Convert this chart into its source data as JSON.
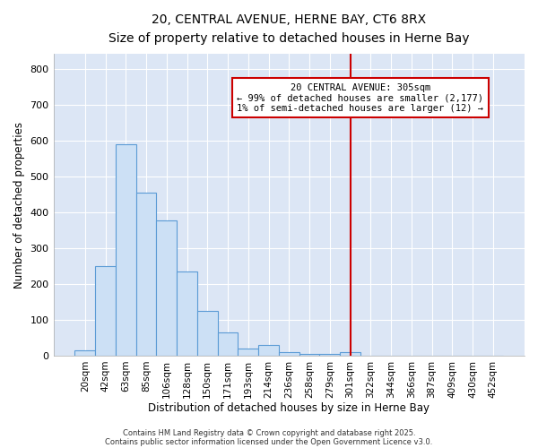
{
  "title1": "20, CENTRAL AVENUE, HERNE BAY, CT6 8RX",
  "title2": "Size of property relative to detached houses in Herne Bay",
  "xlabel": "Distribution of detached houses by size in Herne Bay",
  "ylabel": "Number of detached properties",
  "categories": [
    "20sqm",
    "42sqm",
    "63sqm",
    "85sqm",
    "106sqm",
    "128sqm",
    "150sqm",
    "171sqm",
    "193sqm",
    "214sqm",
    "236sqm",
    "258sqm",
    "279sqm",
    "301sqm",
    "322sqm",
    "344sqm",
    "366sqm",
    "387sqm",
    "409sqm",
    "430sqm",
    "452sqm"
  ],
  "values": [
    15,
    250,
    590,
    455,
    378,
    235,
    125,
    65,
    20,
    30,
    10,
    5,
    5,
    10,
    0,
    0,
    0,
    0,
    0,
    0,
    0
  ],
  "bar_color": "#cce0f5",
  "bar_edge_color": "#5b9bd5",
  "vline_index": 13,
  "vline_color": "#cc0000",
  "annotation_title": "20 CENTRAL AVENUE: 305sqm",
  "annotation_line1": "← 99% of detached houses are smaller (2,177)",
  "annotation_line2": "1% of semi-detached houses are larger (12) →",
  "annotation_box_facecolor": "#ffffff",
  "annotation_box_edgecolor": "#cc0000",
  "ylim": [
    0,
    840
  ],
  "yticks": [
    0,
    100,
    200,
    300,
    400,
    500,
    600,
    700,
    800
  ],
  "plot_bg_color": "#dce6f5",
  "fig_bg_color": "#ffffff",
  "grid_color": "#ffffff",
  "footer1": "Contains HM Land Registry data © Crown copyright and database right 2025.",
  "footer2": "Contains public sector information licensed under the Open Government Licence v3.0."
}
